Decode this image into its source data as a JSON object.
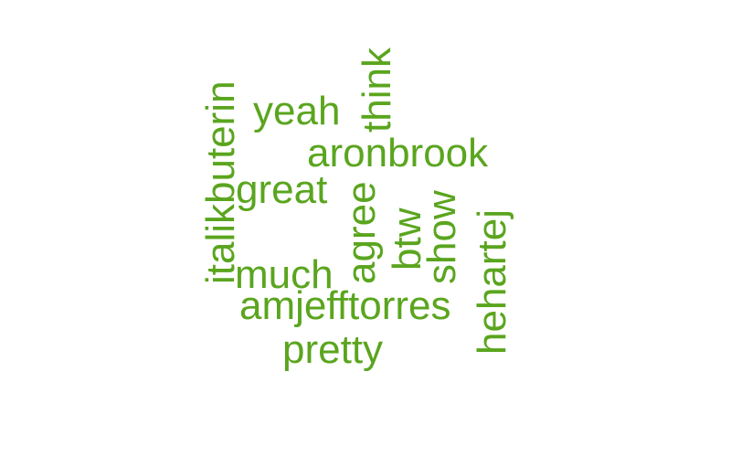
{
  "color": "#5aa51e",
  "words": [
    {
      "text": "yeah",
      "orientation": "horizontal"
    },
    {
      "text": "think",
      "orientation": "vertical"
    },
    {
      "text": "italikbuterin",
      "orientation": "vertical"
    },
    {
      "text": "aronbrook",
      "orientation": "horizontal"
    },
    {
      "text": "great",
      "orientation": "horizontal"
    },
    {
      "text": "agree",
      "orientation": "vertical"
    },
    {
      "text": "btw",
      "orientation": "vertical"
    },
    {
      "text": "show",
      "orientation": "vertical"
    },
    {
      "text": "hehartej",
      "orientation": "vertical"
    },
    {
      "text": "much",
      "orientation": "horizontal"
    },
    {
      "text": "amjefftorres",
      "orientation": "horizontal"
    },
    {
      "text": "pretty",
      "orientation": "horizontal"
    }
  ]
}
